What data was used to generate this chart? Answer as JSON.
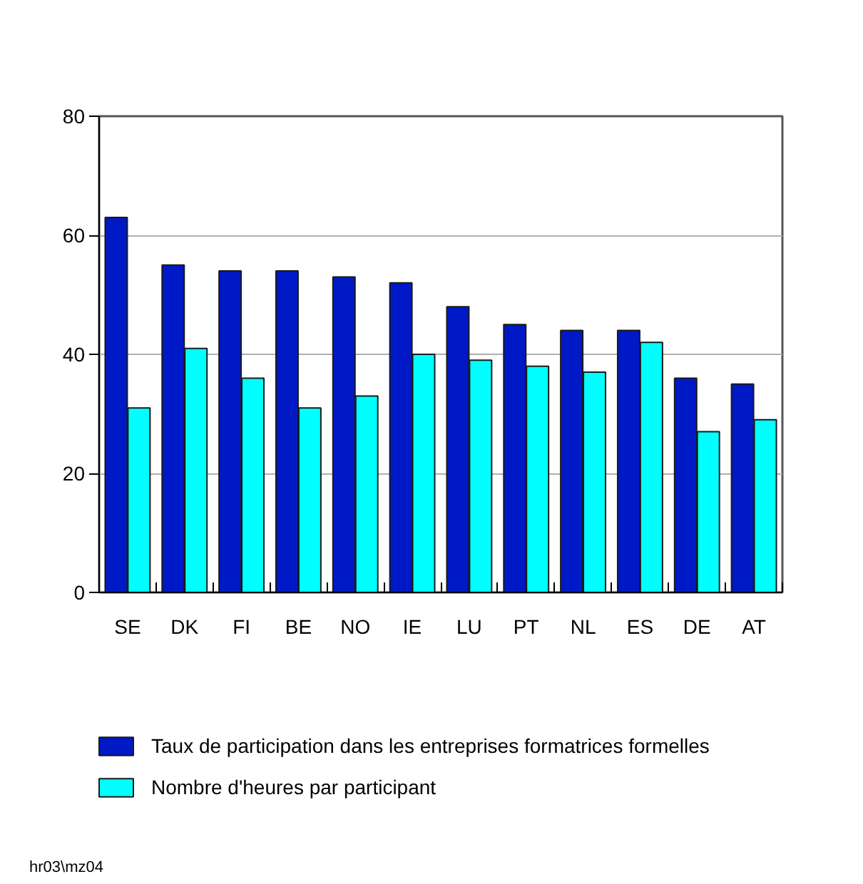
{
  "chart_data": {
    "type": "bar",
    "categories": [
      "SE",
      "DK",
      "FI",
      "BE",
      "NO",
      "IE",
      "LU",
      "PT",
      "NL",
      "ES",
      "DE",
      "AT"
    ],
    "series": [
      {
        "name": "Taux de participation dans les entreprises formatrices formelles",
        "color": "#0019c6",
        "values": [
          63,
          55,
          54,
          54,
          53,
          52,
          48,
          45,
          44,
          44,
          36,
          35
        ]
      },
      {
        "name": "Nombre d'heures par participant",
        "color": "#00ffff",
        "values": [
          31,
          41,
          36,
          31,
          33,
          40,
          39,
          38,
          37,
          42,
          27,
          29
        ]
      }
    ],
    "ylim": [
      0,
      80
    ],
    "yticks": [
      0,
      20,
      40,
      60,
      80
    ],
    "grid": "y",
    "legend": "bottom",
    "annotations": [
      "hr03\\mz04"
    ]
  }
}
